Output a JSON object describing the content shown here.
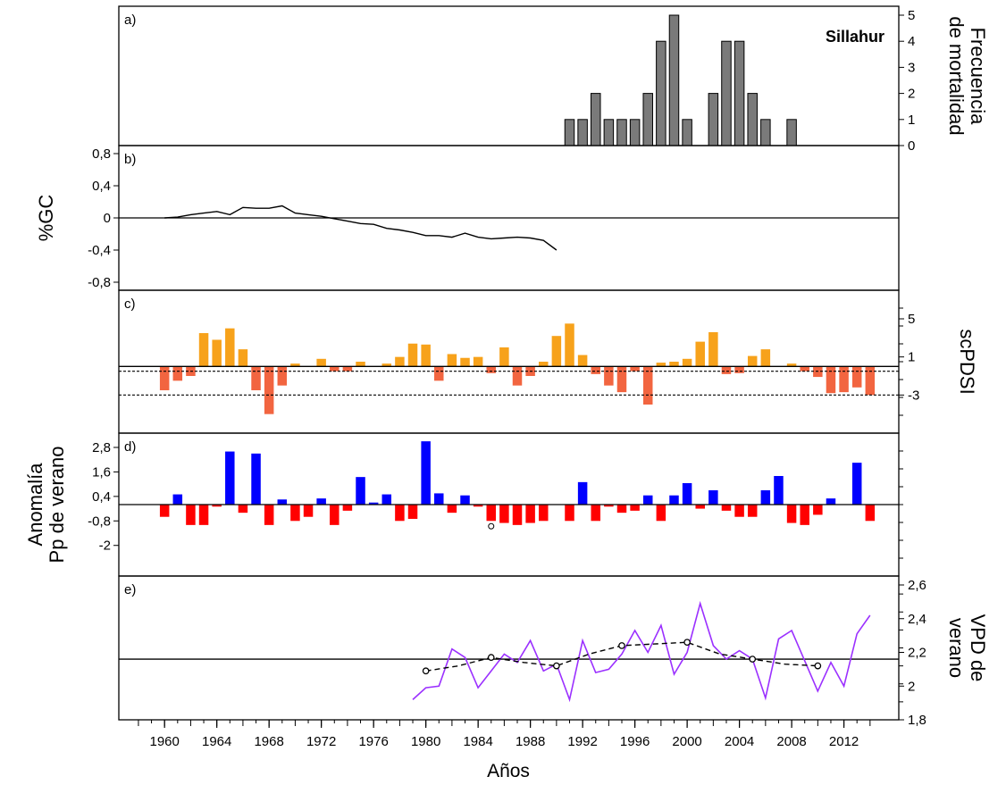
{
  "site_label": "Sillahur",
  "x_axis": {
    "title": "Años",
    "ticks": [
      "1960",
      "1964",
      "1968",
      "1972",
      "1976",
      "1980",
      "1984",
      "1988",
      "1992",
      "1996",
      "2000",
      "2004",
      "2008",
      "2012"
    ]
  },
  "colors": {
    "mortality": "#7a7a7a",
    "scpdsi_positive": "#f7a21b",
    "scpdsi_negative": "#f26540",
    "precip_positive": "#0000ff",
    "precip_negative": "#ff0000",
    "vpd_line": "#9b30ff",
    "vpd_smooth": "#000000"
  },
  "chart_data": [
    {
      "id": "a",
      "panel_label": "a)",
      "type": "bar",
      "ylabel": "Frecuencia de mortalidad",
      "ylabel_lines": [
        "Frecuencia",
        "de mortalidad"
      ],
      "ylim": [
        0,
        5
      ],
      "y_ticks": [
        "0",
        "1",
        "2",
        "3",
        "4",
        "5"
      ],
      "x": [
        1991,
        1992,
        1993,
        1994,
        1995,
        1996,
        1997,
        1998,
        1999,
        2000,
        2002,
        2003,
        2004,
        2005,
        2006,
        2008
      ],
      "values": [
        1,
        1,
        2,
        1,
        1,
        1,
        2,
        4,
        5,
        1,
        2,
        4,
        4,
        2,
        1,
        1
      ]
    },
    {
      "id": "b",
      "panel_label": "b)",
      "type": "line",
      "ylabel": "%GC",
      "ylim": [
        -0.9,
        0.9
      ],
      "y_ticks": [
        "-0,8",
        "-0,4",
        "0",
        "0,4",
        "0,8"
      ],
      "x": [
        1960,
        1961,
        1962,
        1963,
        1964,
        1965,
        1966,
        1967,
        1968,
        1969,
        1970,
        1971,
        1972,
        1973,
        1974,
        1975,
        1976,
        1977,
        1978,
        1979,
        1980,
        1981,
        1982,
        1983,
        1984,
        1985,
        1986,
        1987,
        1988,
        1989,
        1990
      ],
      "values": [
        0,
        0.01,
        0.04,
        0.06,
        0.08,
        0.04,
        0.13,
        0.12,
        0.12,
        0.15,
        0.06,
        0.04,
        0.02,
        -0.01,
        -0.04,
        -0.07,
        -0.08,
        -0.13,
        -0.15,
        -0.18,
        -0.22,
        -0.22,
        -0.24,
        -0.19,
        -0.24,
        -0.26,
        -0.25,
        -0.24,
        -0.25,
        -0.28,
        -0.4
      ]
    },
    {
      "id": "c",
      "panel_label": "c)",
      "type": "bar",
      "ylabel": "scPDSI",
      "ylim": [
        -7,
        8
      ],
      "y_ticks": [
        "-3",
        "1",
        "5"
      ],
      "threshold_lines": [
        -0.5,
        -3
      ],
      "x": [
        1960,
        1961,
        1962,
        1963,
        1964,
        1965,
        1966,
        1967,
        1968,
        1969,
        1970,
        1971,
        1972,
        1973,
        1974,
        1975,
        1976,
        1977,
        1978,
        1979,
        1980,
        1981,
        1982,
        1983,
        1984,
        1985,
        1986,
        1987,
        1988,
        1989,
        1990,
        1991,
        1992,
        1993,
        1994,
        1995,
        1996,
        1997,
        1998,
        1999,
        2000,
        2001,
        2002,
        2003,
        2004,
        2005,
        2006,
        2007,
        2008,
        2009,
        2010,
        2011,
        2012,
        2013,
        2014
      ],
      "values": [
        -2.5,
        -1.5,
        -1.0,
        3.5,
        2.8,
        4.0,
        1.8,
        -2.5,
        -5.0,
        -2.0,
        0.3,
        0,
        0.8,
        -0.5,
        -0.5,
        0.5,
        0,
        0.3,
        1.0,
        2.4,
        2.3,
        -1.5,
        1.3,
        0.9,
        1.0,
        -0.7,
        2.0,
        -2.0,
        -1.0,
        0.5,
        3.2,
        4.5,
        1.2,
        -0.8,
        -2.0,
        -2.7,
        -0.5,
        -4.0,
        0.4,
        0.5,
        0.8,
        2.6,
        3.6,
        -0.8,
        -0.7,
        1.1,
        1.8,
        0,
        0.3,
        -0.5,
        -1.1,
        -2.8,
        -2.7,
        -2.2,
        -3.0
      ]
    },
    {
      "id": "d",
      "panel_label": "d)",
      "type": "bar",
      "ylabel": "Anomalía Pp de verano",
      "ylabel_lines": [
        "Anomalía",
        "Pp de verano"
      ],
      "ylim": [
        -3.5,
        3.5
      ],
      "y_ticks": [
        "-2",
        "-0,8",
        "0,4",
        "1,6",
        "2,8"
      ],
      "x": [
        1960,
        1961,
        1962,
        1963,
        1964,
        1965,
        1966,
        1967,
        1968,
        1969,
        1970,
        1971,
        1972,
        1973,
        1974,
        1975,
        1976,
        1977,
        1978,
        1979,
        1980,
        1981,
        1982,
        1983,
        1984,
        1985,
        1986,
        1987,
        1988,
        1989,
        1990,
        1991,
        1992,
        1993,
        1994,
        1995,
        1996,
        1997,
        1998,
        1999,
        2000,
        2001,
        2002,
        2003,
        2004,
        2005,
        2006,
        2007,
        2008,
        2009,
        2010,
        2011,
        2012,
        2013,
        2014
      ],
      "values": [
        -0.6,
        0.5,
        -1.0,
        -1.0,
        -0.1,
        2.6,
        -0.4,
        2.5,
        -1.0,
        0.25,
        -0.8,
        -0.6,
        0.3,
        -1.0,
        -0.3,
        1.35,
        0.1,
        0.5,
        -0.8,
        -0.7,
        3.1,
        0.55,
        -0.4,
        0.45,
        -0.1,
        -0.8,
        -0.9,
        -1.0,
        -0.9,
        -0.8,
        0,
        -0.8,
        1.1,
        -0.8,
        -0.1,
        -0.4,
        -0.3,
        0.45,
        -0.8,
        0.45,
        1.05,
        -0.2,
        0.7,
        -0.3,
        -0.6,
        -0.6,
        0.7,
        1.4,
        -0.9,
        -1.0,
        -0.5,
        0.3,
        0,
        2.05,
        -0.8
      ],
      "marker": {
        "x": 1985,
        "y": -0.8
      }
    },
    {
      "id": "e",
      "panel_label": "e)",
      "type": "line",
      "ylabel": "VPD de verano",
      "ylabel_lines": [
        "VPD de",
        "verano"
      ],
      "ylim": [
        1.8,
        2.6
      ],
      "y_ticks": [
        "1,8",
        "2",
        "2,2",
        "2,4",
        "2,6"
      ],
      "reference_line": 2.16,
      "series": [
        {
          "kind": "annual",
          "x": [
            1979,
            1980,
            1981,
            1982,
            1983,
            1984,
            1985,
            1986,
            1987,
            1988,
            1989,
            1990,
            1991,
            1992,
            1993,
            1994,
            1995,
            1996,
            1997,
            1998,
            1999,
            2000,
            2001,
            2002,
            2003,
            2004,
            2005,
            2006,
            2007,
            2008,
            2009,
            2010,
            2011,
            2012,
            2013,
            2014
          ],
          "values": [
            1.92,
            1.99,
            2.0,
            2.22,
            2.17,
            1.99,
            2.09,
            2.19,
            2.14,
            2.27,
            2.09,
            2.13,
            1.92,
            2.27,
            2.08,
            2.1,
            2.19,
            2.33,
            2.2,
            2.36,
            2.07,
            2.2,
            2.49,
            2.24,
            2.16,
            2.21,
            2.16,
            1.93,
            2.28,
            2.33,
            2.15,
            1.97,
            2.14,
            2.0,
            2.31,
            2.42
          ]
        },
        {
          "kind": "smoothed",
          "x": [
            1980,
            1982.5,
            1985,
            1987.5,
            1990,
            1992.5,
            1995,
            1997.5,
            2000,
            2002.5,
            2005,
            2007.5,
            2010
          ],
          "values": [
            2.09,
            2.12,
            2.17,
            2.14,
            2.12,
            2.19,
            2.24,
            2.25,
            2.26,
            2.19,
            2.16,
            2.13,
            2.12
          ]
        }
      ],
      "circle_markers": {
        "x": [
          1980,
          1985,
          1990,
          1995,
          2000,
          2005,
          2010
        ],
        "values": [
          2.09,
          2.17,
          2.12,
          2.24,
          2.26,
          2.16,
          2.12
        ]
      }
    }
  ]
}
